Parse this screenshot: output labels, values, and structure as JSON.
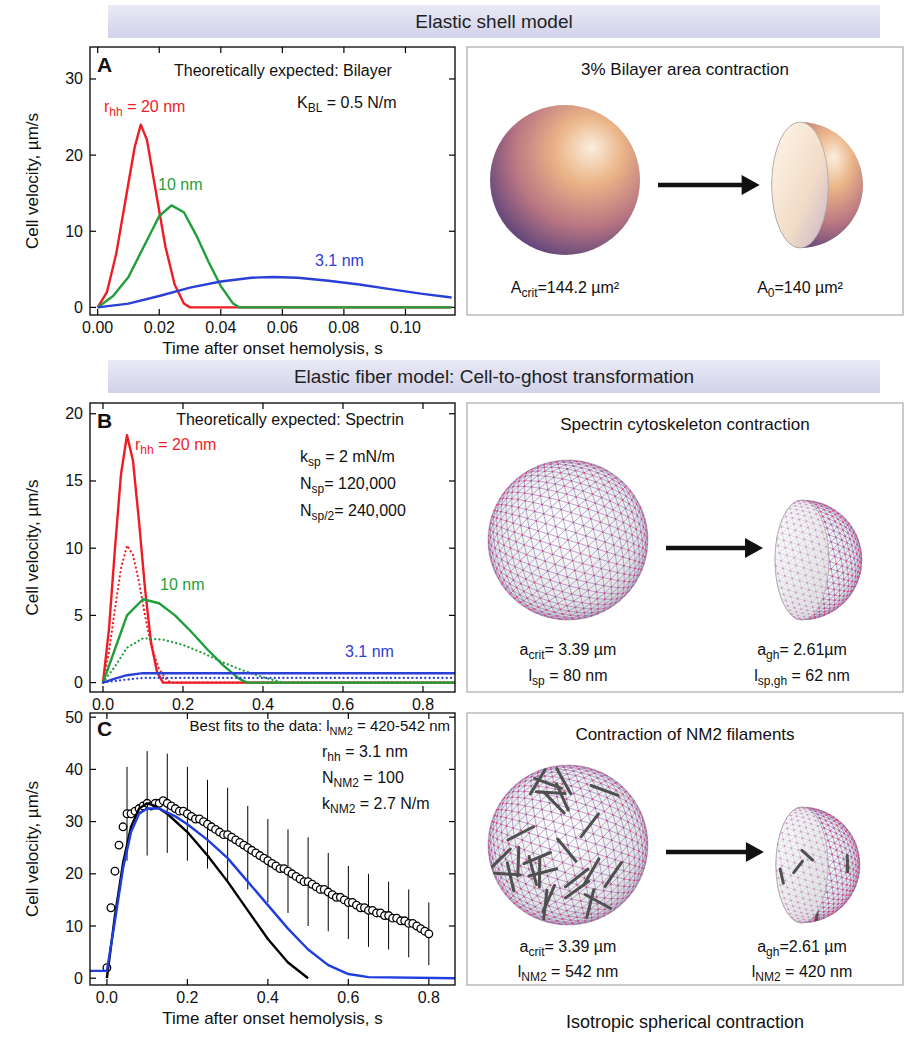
{
  "headers": [
    "Elastic shell model",
    "Elastic fiber model: Cell-to-ghost transformation"
  ],
  "chart_data": [
    {
      "type": "line",
      "letter": "A",
      "xlabel": "Time after onset hemolysis, s",
      "ylabel": "Cell velocity, µm/s",
      "xlim": [
        -0.0025,
        0.1161
      ],
      "ylim": [
        -1,
        34.2
      ],
      "xticks": [
        {
          "value": 0,
          "label": "0.00"
        },
        0.02,
        0.04,
        0.06,
        0.08,
        {
          "value": 0.1,
          "label": "0.10"
        }
      ],
      "yticks": [
        0,
        10,
        20,
        30
      ],
      "annotations": [
        [
          "Theoretically expected: Bilayer"
        ],
        [
          "K",
          "BL",
          " = 0.5 N/m"
        ]
      ],
      "series": [
        {
          "label": [
            "r",
            "hh",
            " = 20 nm"
          ],
          "color": "#ee1c25",
          "line_style": "solid",
          "x": [
            0,
            0.003,
            0.006,
            0.009,
            0.012,
            0.014,
            0.016,
            0.019,
            0.022,
            0.025,
            0.028,
            0.03,
            0.115
          ],
          "values": [
            0,
            2,
            7,
            14,
            21,
            24,
            22,
            15,
            8,
            3,
            0.5,
            0,
            0
          ]
        },
        {
          "label": [
            "10 nm"
          ],
          "color": "#1f9e3a",
          "line_style": "solid",
          "x": [
            0,
            0.005,
            0.01,
            0.015,
            0.02,
            0.024,
            0.028,
            0.032,
            0.036,
            0.04,
            0.044,
            0.046,
            0.115
          ],
          "values": [
            0,
            1.5,
            4,
            8,
            12,
            13.4,
            12.5,
            9.5,
            6,
            2.8,
            0.5,
            0,
            0
          ]
        },
        {
          "label": [
            "3.1 nm"
          ],
          "color": "#2a3fd6",
          "line_style": "solid",
          "x": [
            0,
            0.01,
            0.02,
            0.03,
            0.04,
            0.05,
            0.057,
            0.065,
            0.075,
            0.085,
            0.095,
            0.105,
            0.115
          ],
          "values": [
            0,
            0.5,
            1.5,
            2.6,
            3.4,
            3.9,
            4,
            3.9,
            3.5,
            3,
            2.4,
            1.8,
            1.3
          ]
        }
      ]
    },
    {
      "type": "line",
      "letter": "B",
      "ylabel": "Cell velocity, µm/s",
      "xlim": [
        -0.0325,
        0.88
      ],
      "ylim": [
        -0.7,
        20.8
      ],
      "xticks": [
        {
          "value": 0,
          "label": "0.0"
        },
        0.2,
        0.4,
        0.6,
        0.8
      ],
      "yticks": [
        0,
        5,
        10,
        15,
        20
      ],
      "annotations": [
        [
          "Theoretically expected: Spectrin"
        ],
        [
          "k",
          "sp",
          " = 2 mN/m"
        ],
        [
          "N",
          "sp",
          "= 120,000"
        ],
        [
          "N",
          "sp/2",
          "= 240,000"
        ]
      ],
      "series": [
        {
          "label": [
            "r",
            "hh",
            " = 20 nm"
          ],
          "color": "#ee1c25",
          "line_style": "solid",
          "x": [
            0,
            0.015,
            0.03,
            0.045,
            0.06,
            0.075,
            0.09,
            0.105,
            0.12,
            0.135,
            0.15,
            0.88
          ],
          "values": [
            0,
            4,
            10,
            15.5,
            18.4,
            16.5,
            12,
            7,
            3,
            0.8,
            0,
            0
          ]
        },
        {
          "color": "#ee1c25",
          "line_style": "dotted",
          "x": [
            0,
            0.015,
            0.03,
            0.045,
            0.06,
            0.075,
            0.09,
            0.105,
            0.12,
            0.14,
            0.16,
            0.17,
            0.88
          ],
          "values": [
            0,
            2.3,
            5.5,
            8.5,
            10.2,
            9.5,
            7.5,
            5,
            2.8,
            1,
            0.2,
            0,
            0
          ]
        },
        {
          "label": [
            "10 nm"
          ],
          "color": "#1f9e3a",
          "line_style": "solid",
          "x": [
            0,
            0.03,
            0.06,
            0.1,
            0.14,
            0.18,
            0.22,
            0.26,
            0.3,
            0.34,
            0.36,
            0.88
          ],
          "values": [
            0,
            2.5,
            5,
            6.2,
            5.9,
            5,
            3.8,
            2.5,
            1.3,
            0.3,
            0,
            0
          ]
        },
        {
          "color": "#1f9e3a",
          "line_style": "dotted",
          "x": [
            0,
            0.03,
            0.06,
            0.1,
            0.15,
            0.2,
            0.25,
            0.3,
            0.35,
            0.4,
            0.45,
            0.88
          ],
          "values": [
            0,
            1.2,
            2.6,
            3.3,
            3.2,
            2.8,
            2.2,
            1.5,
            0.9,
            0.4,
            0,
            0
          ]
        },
        {
          "label": [
            "3.1 nm"
          ],
          "color": "#2a3fd6",
          "line_style": "solid",
          "x": [
            0,
            0.03,
            0.06,
            0.1,
            0.2,
            0.88
          ],
          "values": [
            0,
            0.3,
            0.55,
            0.7,
            0.7,
            0.7
          ]
        },
        {
          "color": "#2a3fd6",
          "line_style": "dotted",
          "x": [
            0,
            0.05,
            0.1,
            0.88
          ],
          "values": [
            0,
            0.2,
            0.35,
            0.35
          ]
        }
      ]
    },
    {
      "type": "line",
      "letter": "C",
      "xlabel": "Time after onset hemolysis, s",
      "ylabel": "Cell velocity, µm/s",
      "xlim": [
        -0.042,
        0.865
      ],
      "ylim": [
        -1.3,
        50.8
      ],
      "xticks": [
        {
          "value": 0,
          "label": "0.0"
        },
        0.2,
        0.4,
        0.6,
        0.8
      ],
      "yticks": [
        0,
        10,
        20,
        30,
        40,
        50
      ],
      "annotations": [
        [
          "Best fits to the data: l",
          "NM2",
          " = 420-542 nm"
        ],
        [
          "r",
          "hh",
          " = 3.1 nm"
        ],
        [
          "N",
          "NM2",
          " = 100"
        ],
        [
          "k",
          "NM2",
          " = 2.7 N/m"
        ]
      ],
      "series": [
        {
          "type": "scatter",
          "marker": "circle",
          "color": "#000000",
          "x": [
            0,
            0.01,
            0.02,
            0.03,
            0.04,
            0.05,
            0.06,
            0.07,
            0.08,
            0.09,
            0.1,
            0.11,
            0.12,
            0.13,
            0.14,
            0.15,
            0.16,
            0.17,
            0.18,
            0.19,
            0.2,
            0.21,
            0.22,
            0.23,
            0.24,
            0.25,
            0.26,
            0.27,
            0.28,
            0.29,
            0.3,
            0.31,
            0.32,
            0.33,
            0.34,
            0.35,
            0.36,
            0.37,
            0.38,
            0.39,
            0.4,
            0.41,
            0.42,
            0.43,
            0.44,
            0.45,
            0.46,
            0.47,
            0.48,
            0.49,
            0.5,
            0.51,
            0.52,
            0.53,
            0.54,
            0.55,
            0.56,
            0.57,
            0.58,
            0.59,
            0.6,
            0.61,
            0.62,
            0.63,
            0.64,
            0.65,
            0.66,
            0.67,
            0.68,
            0.69,
            0.7,
            0.71,
            0.72,
            0.73,
            0.74,
            0.75,
            0.76,
            0.77,
            0.78,
            0.79,
            0.8
          ],
          "values": [
            2,
            13.5,
            20.5,
            25.5,
            29,
            31.5,
            31.5,
            32,
            32.5,
            33,
            33.5,
            33,
            33.5,
            33.5,
            34,
            33.5,
            33,
            32.5,
            32,
            32,
            31.5,
            31,
            30.5,
            30.5,
            30,
            29.5,
            29,
            28.5,
            28,
            27.5,
            27.5,
            27,
            26.5,
            26,
            25.5,
            25,
            24.5,
            24,
            23.5,
            23,
            22.5,
            22,
            21.5,
            21,
            21,
            20.5,
            20,
            19.5,
            19,
            18.5,
            18.5,
            18,
            17.5,
            17,
            17,
            16.5,
            16,
            15.5,
            15.5,
            15,
            14.5,
            14.5,
            14,
            13.5,
            13.5,
            13,
            13,
            12.5,
            12.5,
            12,
            12,
            11.5,
            11.5,
            11,
            11,
            10.5,
            10.5,
            10,
            9.5,
            9,
            8.5
          ],
          "errors": [
            null,
            null,
            null,
            null,
            null,
            9,
            null,
            null,
            null,
            null,
            10,
            null,
            null,
            null,
            null,
            9.5,
            null,
            null,
            null,
            null,
            9,
            null,
            null,
            null,
            null,
            8.5,
            null,
            null,
            null,
            null,
            9,
            null,
            null,
            null,
            null,
            8,
            null,
            null,
            null,
            null,
            8,
            null,
            null,
            null,
            null,
            8,
            null,
            null,
            null,
            null,
            8.5,
            null,
            null,
            null,
            null,
            7.5,
            null,
            null,
            null,
            null,
            7,
            null,
            null,
            null,
            null,
            7,
            null,
            null,
            null,
            null,
            6.5,
            null,
            null,
            null,
            null,
            6.5,
            null,
            null,
            null,
            null,
            6
          ]
        },
        {
          "type": "line",
          "color": "#000000",
          "line_style": "solid",
          "x": [
            0,
            0.02,
            0.04,
            0.06,
            0.08,
            0.1,
            0.12,
            0.15,
            0.2,
            0.25,
            0.3,
            0.35,
            0.4,
            0.45,
            0.5
          ],
          "values": [
            0,
            12,
            22,
            29,
            32.5,
            33.5,
            33,
            31.5,
            28,
            23.5,
            18.5,
            13,
            7.5,
            3,
            0
          ]
        },
        {
          "type": "line",
          "color": "#1e3ee0",
          "line_style": "solid",
          "x": [
            -0.042,
            0,
            0.02,
            0.04,
            0.06,
            0.08,
            0.1,
            0.13,
            0.17,
            0.2,
            0.25,
            0.3,
            0.35,
            0.4,
            0.45,
            0.5,
            0.55,
            0.6,
            0.65,
            0.865
          ],
          "values": [
            1.4,
            1.4,
            11,
            21,
            28,
            31.5,
            32.5,
            32.5,
            31,
            29.5,
            26.5,
            23,
            18.5,
            14,
            9.5,
            5.5,
            2.5,
            0.8,
            0.2,
            0
          ]
        }
      ]
    }
  ],
  "diagrams": [
    {
      "kind": "bilayer",
      "title": [
        "3% Bilayer area contraction"
      ],
      "before": [
        [
          "A",
          "crit",
          "=144.2 µm²"
        ]
      ],
      "after": [
        [
          "A",
          "0",
          "=140 µm²"
        ]
      ]
    },
    {
      "kind": "spectrin",
      "title": [
        "Spectrin cytoskeleton contraction"
      ],
      "before": [
        [
          "a",
          "crit",
          "= 3.39 µm"
        ],
        [
          "l",
          "sp",
          " = 80 nm"
        ]
      ],
      "after": [
        [
          "a",
          "gh",
          "= 2.61µm"
        ],
        [
          "l",
          "sp,gh",
          " = 62 nm"
        ]
      ]
    },
    {
      "kind": "filaments",
      "title": [
        "Contraction of NM2 filaments"
      ],
      "before": [
        [
          "a",
          "crit",
          "= 3.39 µm"
        ],
        [
          "l",
          "NM2",
          " = 542 nm"
        ]
      ],
      "after": [
        [
          "a",
          "gh",
          "=2.61 µm"
        ],
        [
          "l",
          "NM2",
          " = 420 nm"
        ]
      ]
    }
  ],
  "footer": "Isotropic spherical contraction"
}
